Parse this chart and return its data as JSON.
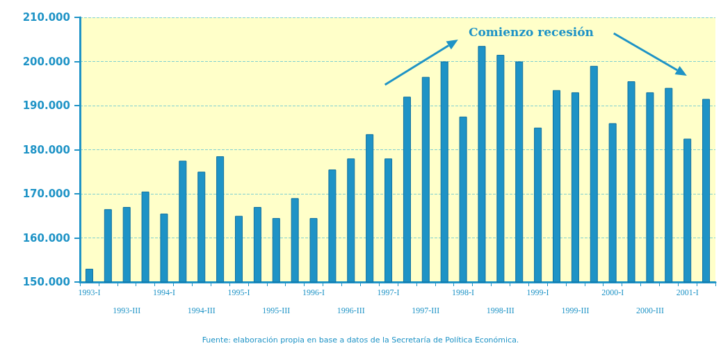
{
  "chart_data": {
    "type": "bar",
    "categories": [
      "1993-I",
      null,
      "1993-III",
      null,
      "1994-I",
      null,
      "1994-III",
      null,
      "1995-I",
      null,
      "1995-III",
      null,
      "1996-I",
      null,
      "1996-III",
      null,
      "1997-I",
      null,
      "1997-III",
      null,
      "1998-I",
      null,
      "1998-III",
      null,
      "1999-I",
      null,
      "1999-III",
      null,
      "2000-I",
      null,
      "2000-III",
      null,
      "2001-I",
      null
    ],
    "values": [
      153000,
      166500,
      167000,
      170500,
      165500,
      177500,
      175000,
      178500,
      165000,
      167000,
      164500,
      169000,
      164500,
      175500,
      178000,
      183500,
      178000,
      192000,
      196500,
      200000,
      187500,
      203500,
      201500,
      200000,
      185000,
      193500,
      193000,
      199000,
      186000,
      195500,
      193000,
      194000,
      182500,
      191500
    ],
    "color": "#1e93c6",
    "ylim": [
      150000,
      210000
    ],
    "yticks": [
      {
        "value": 150000,
        "label": "150.000"
      },
      {
        "value": 160000,
        "label": "160.000"
      },
      {
        "value": 170000,
        "label": "170.000"
      },
      {
        "value": 180000,
        "label": "180.000"
      },
      {
        "value": 190000,
        "label": "190.000"
      },
      {
        "value": 200000,
        "label": "200.000"
      },
      {
        "value": 210000,
        "label": "210.000"
      }
    ],
    "grid": "y",
    "annotations": [
      "Comienzo recesión",
      "Fuente: elaboración propia en base a datos de la Secretaría de Política Económica."
    ]
  }
}
